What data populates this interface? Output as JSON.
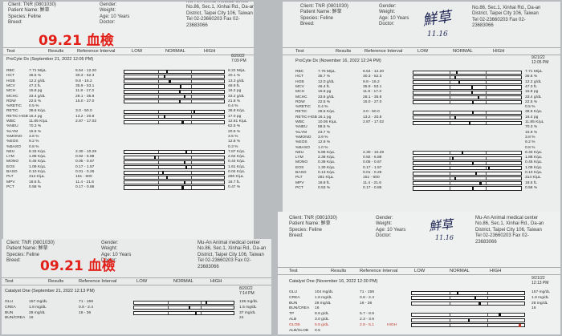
{
  "header": {
    "client": "Client: TNR (0801030)",
    "patient": "Patient Name: 鮮草",
    "species": "Species: Feline",
    "breed": "Breed:",
    "gender": "Gender:",
    "weight": "Weight:",
    "age": "Age: 10 Years",
    "doctor": "Doctor:",
    "clinic1": "Mu-An Animal medical center",
    "clinic2": "No.86, Sec.1, Xinhai Rd., Da-an",
    "clinic3": "District, Taipei City 106, Taiwan",
    "clinic4": "Tel 02-23660203  Fax 02-",
    "clinic5": "23683066"
  },
  "annotations": {
    "red_title": "09.21 血檢",
    "hand_name": "鮮草",
    "hand_date": "11.16"
  },
  "columns": {
    "test": "Test",
    "results": "Results",
    "ref": "Reference Interval",
    "low": "LOW",
    "normal": "NORMAL",
    "high": "HIGH"
  },
  "p1": {
    "title": "ProCyte Dx (September 21, 2022 12:05 PM)",
    "date1": "8/20/22",
    "date2": "7:09 PM",
    "rows": [
      {
        "t": "RBC",
        "r": "7.71 M/µL",
        "ref": "6.54 - 12.20",
        "side": "8.22 M/µL",
        "m": 0.42
      },
      {
        "t": "HCT",
        "r": "36.5 %",
        "ref": "30.3 - 52.3",
        "side": "40.1 %",
        "m": 0.4
      },
      {
        "t": "HGB",
        "r": "12.2 g/dL",
        "ref": "9.8 - 16.2",
        "side": "13.3 g/dL",
        "m": 0.45
      },
      {
        "t": "MCV",
        "r": "47.3 fL",
        "ref": "35.9 - 53.1",
        "side": "48.9 fL",
        "m": 0.56
      },
      {
        "t": "MCH",
        "r": "15.8 pg",
        "ref": "11.8 - 17.3",
        "side": "16.2 pg",
        "m": 0.55
      },
      {
        "t": "MCHC",
        "r": "33.4 g/dL",
        "ref": "28.1 - 35.8",
        "side": "33.2 g/dL",
        "m": 0.6
      },
      {
        "t": "RDW",
        "r": "22.5 %",
        "ref": "15.0 - 27.0",
        "side": "21.8 %",
        "m": 0.55
      },
      {
        "t": "%RETIC",
        "r": "0.5 %",
        "ref": "",
        "side": "0.4 %",
        "m": -1
      },
      {
        "t": "RETIC",
        "r": "38.6 K/µL",
        "ref": "3.0 - 50.0",
        "side": "36.8 K/µL",
        "m": 0.7
      },
      {
        "t": "RETIC-HGB",
        "r": "16.4 pg",
        "ref": "13.2 - 20.8",
        "side": "17.0 pg",
        "m": 0.4
      },
      {
        "t": "WBC",
        "r": "11.85 K/µL",
        "ref": "2.87 - 17.02",
        "side": "12.61 K/µL",
        "m": 0.58
      },
      {
        "t": "%NEU",
        "r": "70.3 %",
        "ref": "",
        "side": "62.5 %",
        "m": -1
      },
      {
        "t": "%LYM",
        "r": "15.9 %",
        "ref": "",
        "side": "20.9 %",
        "m": -1
      },
      {
        "t": "%MONO",
        "r": "3.8 %",
        "ref": "",
        "side": "3.5 %",
        "m": -1
      },
      {
        "t": "%EOS",
        "r": "9.2 %",
        "ref": "",
        "side": "12.8 %",
        "m": -1
      },
      {
        "t": "%BASO",
        "r": "0.8 %",
        "ref": "",
        "side": "0.3 %",
        "m": -1
      },
      {
        "t": "NEU",
        "r": "8.33 K/µL",
        "ref": "2.30 - 10.29",
        "side": "7.87 K/µL",
        "m": 0.62
      },
      {
        "t": "LYM",
        "r": "1.88 K/µL",
        "ref": "0.92 - 6.88",
        "side": "2.64 K/µL",
        "m": 0.3
      },
      {
        "t": "MONO",
        "r": "0.45 K/µL",
        "ref": "0.05 - 0.67",
        "side": "0.44 K/µL",
        "m": 0.6
      },
      {
        "t": "EOS",
        "r": "1.09 K/µL",
        "ref": "0.17 - 1.57",
        "side": "1.61 K/µL",
        "m": 0.62
      },
      {
        "t": "BASO",
        "r": "0.10 K/µL",
        "ref": "0.01 - 0.26",
        "side": "0.04 K/µL",
        "m": 0.38
      },
      {
        "t": "PLT",
        "r": "314 K/µL",
        "ref": "151 - 600",
        "side": "280 K/µL",
        "m": 0.42
      },
      {
        "t": "MPV",
        "r": "18.5 fL",
        "ref": "11.4 - 21.6",
        "side": "16.7 fL",
        "m": 0.6
      },
      {
        "t": "PCT",
        "r": "0.58 %",
        "ref": "0.17 - 0.86",
        "side": "0.47 %",
        "m": 0.58
      }
    ]
  },
  "p2": {
    "title": "ProCyte Dx (November 16, 2022 12:24 PM)",
    "date1": "9/21/22",
    "date2": "12:05 PM",
    "rows": [
      {
        "t": "RBC",
        "r": "7.70 M/µL",
        "ref": "6.54 - 12.20",
        "side": "7.71 M/µL",
        "m": 0.4
      },
      {
        "t": "HCT",
        "r": "35.7 %",
        "ref": "30.3 - 52.3",
        "side": "36.5 %",
        "m": 0.38
      },
      {
        "t": "HGB",
        "r": "12.0 g/dL",
        "ref": "9.8 - 16.2",
        "side": "12.2 g/dL",
        "m": 0.42
      },
      {
        "t": "MCV",
        "r": "46.4 fL",
        "ref": "35.9 - 53.1",
        "side": "47.3 fL",
        "m": 0.54
      },
      {
        "t": "MCH",
        "r": "15.6 pg",
        "ref": "11.8 - 17.3",
        "side": "15.8 pg",
        "m": 0.54
      },
      {
        "t": "MCHC",
        "r": "33.6 g/dL",
        "ref": "28.1 - 35.8",
        "side": "33.4 g/dL",
        "m": 0.6
      },
      {
        "t": "RDW",
        "r": "22.5 %",
        "ref": "15.0 - 27.0",
        "side": "22.5 %",
        "m": 0.55
      },
      {
        "t": "%RETIC",
        "r": "0.4 %",
        "ref": "",
        "side": "0.5 %",
        "m": -1
      },
      {
        "t": "RETIC",
        "r": "28.5 K/µL",
        "ref": "3.0 - 50.0",
        "side": "38.6 K/µL",
        "m": 0.55
      },
      {
        "t": "RETIC-HGB",
        "r": "16.1 pg",
        "ref": "13.2 - 20.8",
        "side": "16.4 pg",
        "m": 0.38
      },
      {
        "t": "WBC",
        "r": "10.06 K/µL",
        "ref": "2.87 - 17.02",
        "side": "11.85 K/µL",
        "m": 0.52
      },
      {
        "t": "%NEU",
        "r": "58.5 %",
        "ref": "",
        "side": "70.3 %",
        "m": -1
      },
      {
        "t": "%LYM",
        "r": "23.7 %",
        "ref": "",
        "side": "15.9 %",
        "m": -1
      },
      {
        "t": "%MONO",
        "r": "3.9 %",
        "ref": "",
        "side": "3.8 %",
        "m": -1
      },
      {
        "t": "%EOS",
        "r": "12.9 %",
        "ref": "",
        "side": "9.2 %",
        "m": -1
      },
      {
        "t": "%BASO",
        "r": "1.0 %",
        "ref": "",
        "side": "0.8 %",
        "m": -1
      },
      {
        "t": "NEU",
        "r": "5.86 K/µL",
        "ref": "2.30 - 10.29",
        "side": "8.33 K/µL",
        "m": 0.45
      },
      {
        "t": "LYM",
        "r": "2.38 K/µL",
        "ref": "0.92 - 6.88",
        "side": "1.88 K/µL",
        "m": 0.36
      },
      {
        "t": "MONO",
        "r": "0.39 K/µL",
        "ref": "0.05 - 0.67",
        "side": "0.45 K/µL",
        "m": 0.55
      },
      {
        "t": "EOS",
        "r": "1.30 K/µL",
        "ref": "0.17 - 1.57",
        "side": "1.09 K/µL",
        "m": 0.7
      },
      {
        "t": "BASO",
        "r": "0.13 K/µL",
        "ref": "0.01 - 0.26",
        "side": "0.10 K/µL",
        "m": 0.58
      },
      {
        "t": "PLT",
        "r": "281 K/µL",
        "ref": "151 - 600",
        "side": "314 K/µL",
        "m": 0.38
      },
      {
        "t": "MPV",
        "r": "18.8 fL",
        "ref": "11.4 - 21.6",
        "side": "18.5 fL",
        "m": 0.62
      },
      {
        "t": "PCT",
        "r": "0.53 %",
        "ref": "0.17 - 0.86",
        "side": "0.58 %",
        "m": 0.55
      }
    ]
  },
  "p3": {
    "title": "Catalyst One (September 21, 2022 12:13 PM)",
    "date1": "8/20/22",
    "date2": "7:14 PM",
    "rows": [
      {
        "t": "GLU",
        "r": "157 mg/dL",
        "ref": "71 - 159",
        "side": "135 mg/dL",
        "m": 0.72,
        "hi": false
      },
      {
        "t": "CREA",
        "r": "1.8 mg/dL",
        "ref": "0.8 - 2.4",
        "side": "1.5 mg/dL",
        "m": 0.55,
        "hi": false
      },
      {
        "t": "BUN",
        "r": "28 mg/dL",
        "ref": "16 - 36",
        "side": "37 mg/dL",
        "m": 0.62,
        "hi": false
      },
      {
        "t": "BUN/CREA",
        "r": "16",
        "ref": "",
        "side": "24",
        "m": -1,
        "hi": false
      }
    ]
  },
  "p4": {
    "title": "Catalyst One (November 16, 2022 12:30 PM)",
    "date1": "9/21/22",
    "date2": "12:13 PM",
    "rows": [
      {
        "t": "GLU",
        "r": "104 mg/dL",
        "ref": "71 - 159",
        "side": "157 mg/dL",
        "m": 0.4,
        "hi": false
      },
      {
        "t": "CREA",
        "r": "1.8 mg/dL",
        "ref": "0.8 - 2.4",
        "side": "1.8 mg/dL",
        "m": 0.56,
        "hi": false
      },
      {
        "t": "BUN",
        "r": "28 mg/dL",
        "ref": "16 - 36",
        "side": "28 mg/dL",
        "m": 0.6,
        "hi": false
      },
      {
        "t": "BUN/CREA",
        "r": "16",
        "ref": "",
        "side": "16",
        "m": -1,
        "hi": false
      },
      {
        "t": "TP",
        "r": "8.6 g/dL",
        "ref": "5.7 - 8.9",
        "side": "",
        "m": 0.78,
        "hi": false
      },
      {
        "t": "ALB",
        "r": "3.0 g/dL",
        "ref": "2.3 - 3.9",
        "side": "",
        "m": 0.5,
        "hi": false
      },
      {
        "t": "GLOB",
        "r": "5.6 g/dL",
        "ref": "2.8 - 5.1",
        "flag": "HIGH",
        "side": "",
        "m": 0.96,
        "hi": true
      },
      {
        "t": "ALB/GLOB",
        "r": "0.5",
        "ref": "",
        "side": "",
        "m": -1,
        "hi": false
      }
    ]
  }
}
